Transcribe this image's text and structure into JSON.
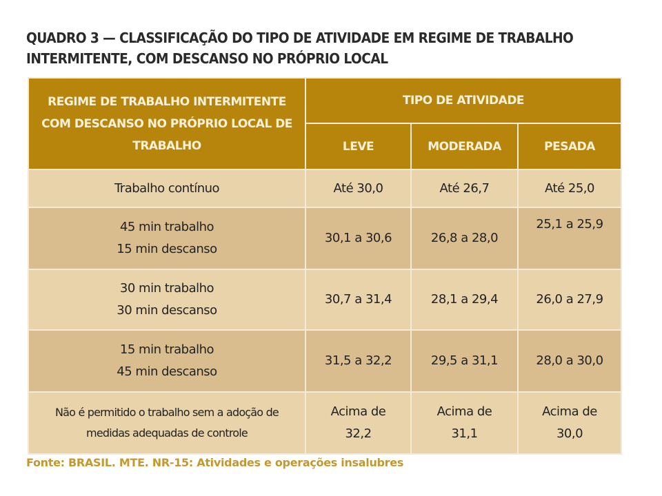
{
  "title": "QUADRO 3 — CLASSIFICAÇÃO DO TIPO DE ATIVIDADE EM REGIME DE TRABALHO INTERMITENTE, COM DESCANSO NO PRÓPRIO LOCAL",
  "title_lines": [
    "QUADRO 3 — CLASSIFICAÇÃO DO TIPO DE ATIVIDADE EM REGIME DE TRABALHO",
    "INTERMITENTE, COM DESCANSO NO PRÓPRIO LOCAL"
  ],
  "colors": {
    "header": "#b7850c",
    "row_light": "#e8d3ab",
    "row_dark": "#d9bd8e",
    "source": "#c4982f"
  },
  "header": {
    "regime_lines": [
      "REGIME DE TRABALHO INTERMITENTE",
      "COM DESCANSO NO PRÓPRIO LOCAL DE",
      "TRABALHO"
    ],
    "tipo": "TIPO DE ATIVIDADE",
    "columns": [
      "LEVE",
      "MODERADA",
      "PESADA"
    ]
  },
  "rows": [
    {
      "regime": [
        "Trabalho contínuo"
      ],
      "leve": [
        "Até 30,0"
      ],
      "moderada": [
        "Até 26,7"
      ],
      "pesada": [
        "Até 25,0"
      ]
    },
    {
      "regime": [
        "45 min trabalho",
        "15 min descanso"
      ],
      "leve": [
        "30,1 a 30,6"
      ],
      "moderada": [
        "26,8 a 28,0"
      ],
      "pesada": [
        "25,1 a 25,9"
      ]
    },
    {
      "regime": [
        "30 min trabalho",
        "30 min descanso"
      ],
      "leve": [
        "30,7 a 31,4"
      ],
      "moderada": [
        "28,1 a 29,4"
      ],
      "pesada": [
        "26,0 a 27,9"
      ]
    },
    {
      "regime": [
        "15 min trabalho",
        "45 min descanso"
      ],
      "leve": [
        "31,5 a 32,2"
      ],
      "moderada": [
        "29,5 a 31,1"
      ],
      "pesada": [
        "28,0 a 30,0"
      ]
    },
    {
      "regime": [
        "Não é permitido o trabalho sem a adoção de",
        "medidas adequadas de controle"
      ],
      "leve": [
        "Acima de",
        "32,2"
      ],
      "moderada": [
        "Acima de",
        "31,1"
      ],
      "pesada": [
        "Acima de",
        "30,0"
      ]
    }
  ],
  "source": "Fonte: BRASIL. MTE. NR-15: Atividades e operações insalubres"
}
